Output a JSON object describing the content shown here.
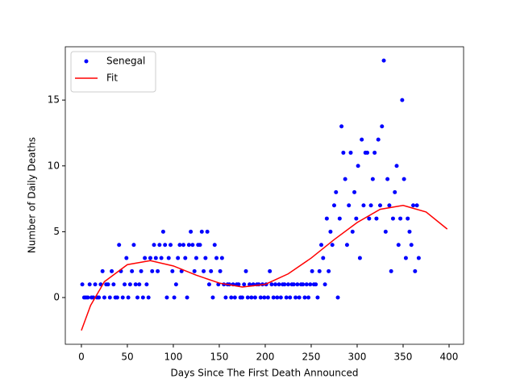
{
  "chart_data": {
    "type": "scatter",
    "xlabel": "Days Since The First Death Announced",
    "ylabel": "Number of Daily Deaths",
    "xlim": [
      -17.5,
      415.8
    ],
    "ylim": [
      -3.55,
      19.05
    ],
    "xticks": [
      0,
      50,
      100,
      150,
      200,
      250,
      300,
      350,
      400
    ],
    "yticks": [
      0,
      5,
      10,
      15
    ],
    "legend": "upper left",
    "series": [
      {
        "name": "Senegal",
        "kind": "scatter",
        "color": "#0000ff",
        "x": [
          1,
          3,
          5,
          7,
          9,
          11,
          13,
          15,
          17,
          19,
          21,
          23,
          25,
          27,
          29,
          31,
          33,
          35,
          37,
          39,
          41,
          43,
          45,
          47,
          49,
          51,
          53,
          55,
          57,
          59,
          61,
          63,
          65,
          67,
          69,
          71,
          73,
          75,
          77,
          79,
          81,
          83,
          85,
          87,
          89,
          91,
          93,
          95,
          97,
          99,
          101,
          103,
          105,
          107,
          109,
          111,
          113,
          115,
          117,
          119,
          121,
          123,
          125,
          127,
          129,
          131,
          133,
          135,
          137,
          139,
          141,
          143,
          145,
          147,
          149,
          151,
          153,
          155,
          157,
          159,
          161,
          163,
          165,
          167,
          169,
          171,
          173,
          175,
          177,
          179,
          181,
          183,
          185,
          187,
          189,
          191,
          193,
          195,
          197,
          199,
          201,
          203,
          205,
          207,
          209,
          211,
          213,
          215,
          217,
          219,
          221,
          223,
          225,
          227,
          229,
          231,
          233,
          235,
          237,
          239,
          241,
          243,
          245,
          247,
          249,
          251,
          253,
          255,
          257,
          259,
          261,
          263,
          265,
          267,
          269,
          271,
          273,
          275,
          277,
          279,
          281,
          283,
          285,
          287,
          289,
          291,
          293,
          295,
          297,
          299,
          301,
          303,
          305,
          307,
          309,
          311,
          313,
          315,
          317,
          319,
          321,
          323,
          325,
          327,
          329,
          331,
          333,
          335,
          337,
          339,
          341,
          343,
          345,
          347,
          349,
          351,
          353,
          355,
          357,
          359,
          361,
          363,
          365,
          367
        ],
        "values": [
          1,
          0,
          0,
          0,
          1,
          0,
          0,
          1,
          0,
          0,
          1,
          2,
          0,
          1,
          1,
          0,
          2,
          1,
          0,
          0,
          4,
          2,
          0,
          1,
          3,
          0,
          1,
          2,
          4,
          1,
          0,
          1,
          2,
          0,
          3,
          1,
          0,
          3,
          2,
          4,
          3,
          2,
          4,
          3,
          5,
          4,
          0,
          3,
          4,
          2,
          0,
          1,
          3,
          4,
          2,
          4,
          3,
          0,
          4,
          5,
          4,
          2,
          3,
          4,
          4,
          5,
          2,
          3,
          5,
          1,
          2,
          0,
          4,
          3,
          1,
          2,
          3,
          1,
          0,
          1,
          1,
          0,
          1,
          0,
          1,
          1,
          0,
          0,
          1,
          2,
          0,
          1,
          0,
          1,
          0,
          1,
          1,
          0,
          1,
          0,
          1,
          0,
          2,
          1,
          0,
          1,
          0,
          1,
          0,
          1,
          1,
          0,
          1,
          0,
          1,
          1,
          0,
          1,
          0,
          1,
          1,
          0,
          1,
          0,
          1,
          2,
          1,
          1,
          0,
          2,
          4,
          3,
          1,
          6,
          2,
          5,
          4,
          7,
          8,
          0,
          6,
          13,
          11,
          9,
          4,
          7,
          11,
          5,
          8,
          6,
          10,
          3,
          12,
          7,
          11,
          11,
          6,
          7,
          9,
          11,
          6,
          12,
          7,
          13,
          18,
          5,
          9,
          7,
          2,
          6,
          8,
          10,
          4,
          6,
          15,
          9,
          3,
          6,
          5,
          4,
          7,
          2,
          7,
          3
        ]
      },
      {
        "name": "Fit",
        "kind": "line",
        "color": "#ff0000",
        "x": [
          0,
          10,
          25,
          50,
          75,
          100,
          125,
          150,
          175,
          200,
          225,
          250,
          275,
          300,
          325,
          350,
          375,
          398
        ],
        "values": [
          -2.5,
          -0.6,
          1.2,
          2.5,
          2.8,
          2.4,
          1.7,
          1.1,
          0.8,
          1.0,
          1.8,
          3.0,
          4.4,
          5.7,
          6.7,
          7.0,
          6.5,
          5.2
        ]
      }
    ]
  }
}
